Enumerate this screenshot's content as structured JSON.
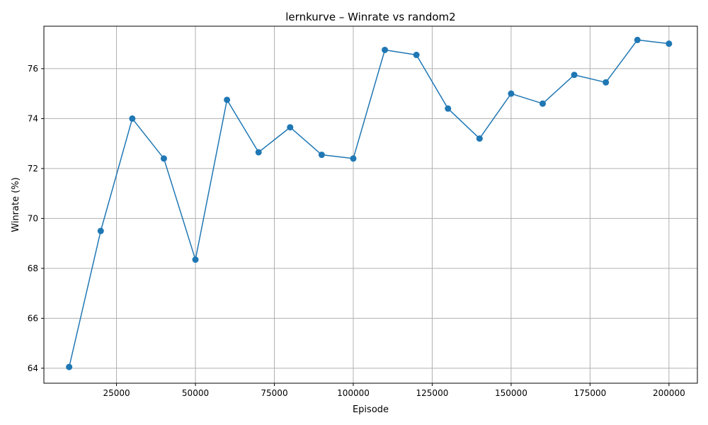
{
  "chart_data": {
    "type": "line",
    "title": "lernkurve – Winrate vs random2",
    "xlabel": "Episode",
    "ylabel": "Winrate (%)",
    "xlim": [
      2000,
      209000
    ],
    "ylim": [
      63.4,
      77.7
    ],
    "grid": true,
    "xticks": [
      25000,
      50000,
      75000,
      100000,
      125000,
      150000,
      175000,
      200000
    ],
    "yticks": [
      64,
      66,
      68,
      70,
      72,
      74,
      76
    ],
    "series": [
      {
        "color": "#1f77b4",
        "marker": "circle",
        "x": [
          10000,
          20000,
          30000,
          40000,
          50000,
          60000,
          70000,
          80000,
          90000,
          100000,
          110000,
          120000,
          130000,
          140000,
          150000,
          160000,
          170000,
          180000,
          190000,
          200000
        ],
        "y": [
          64.05,
          69.5,
          74.0,
          72.4,
          68.35,
          74.75,
          72.65,
          73.65,
          72.55,
          72.4,
          76.75,
          76.55,
          74.4,
          73.2,
          75.0,
          74.6,
          75.75,
          75.45,
          77.15,
          77.0
        ]
      }
    ]
  }
}
